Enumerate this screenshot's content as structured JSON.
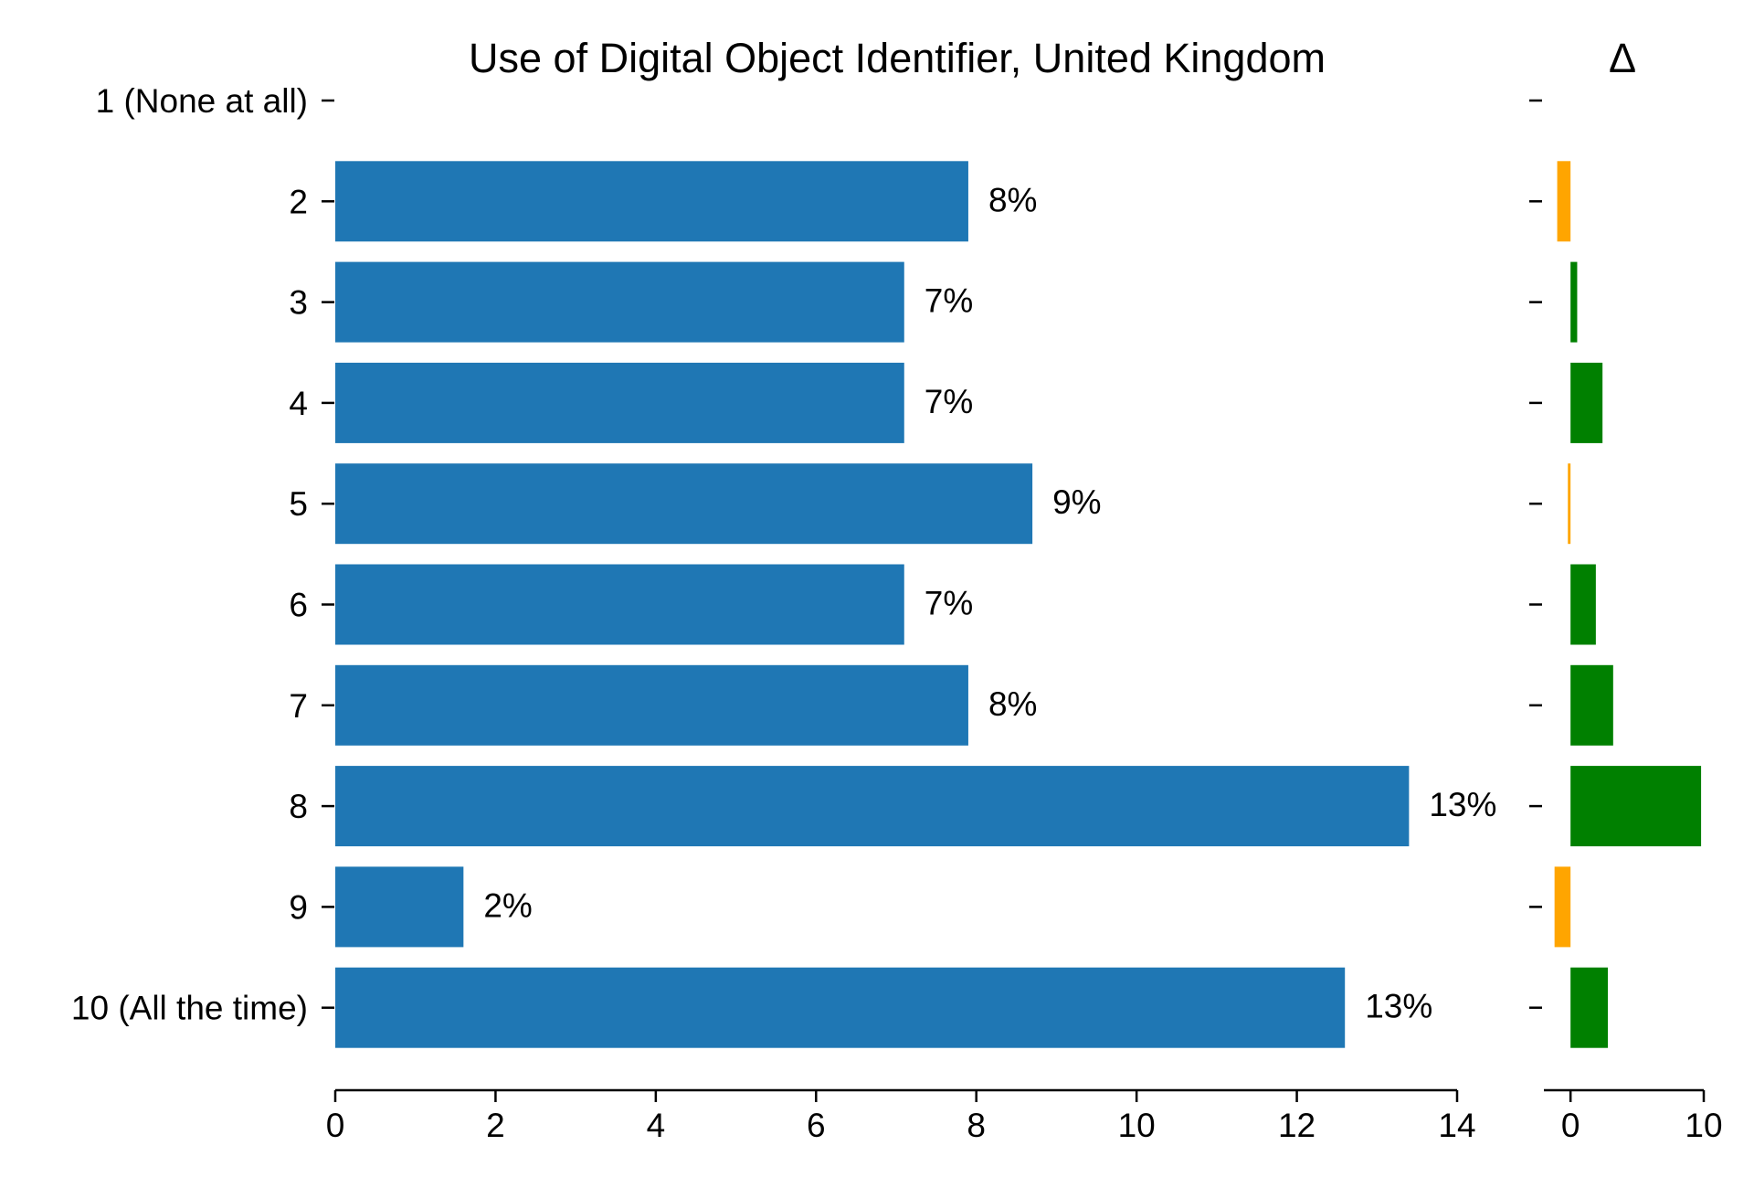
{
  "chart_data": [
    {
      "type": "bar",
      "orientation": "horizontal",
      "title": "Use of Digital Object Identifier, United Kingdom",
      "categories": [
        "1 (None at all)",
        "2",
        "3",
        "4",
        "5",
        "6",
        "7",
        "8",
        "9",
        "10 (All the time)"
      ],
      "values": [
        0,
        7.9,
        7.1,
        7.1,
        8.7,
        7.1,
        7.9,
        13.4,
        1.6,
        12.6
      ],
      "data_labels": [
        "",
        "8%",
        "7%",
        "7%",
        "9%",
        "7%",
        "8%",
        "13%",
        "2%",
        "13%"
      ],
      "xlim": [
        0,
        14
      ],
      "xticks": [
        0,
        2,
        4,
        6,
        8,
        10,
        12,
        14
      ],
      "xlabel": "",
      "ylabel": "",
      "bar_color": "#1f77b4",
      "grid": false
    },
    {
      "type": "bar",
      "orientation": "horizontal",
      "title": "Δ",
      "categories": [
        "1 (None at all)",
        "2",
        "3",
        "4",
        "5",
        "6",
        "7",
        "8",
        "9",
        "10 (All the time)"
      ],
      "values": [
        0,
        -1.0,
        0.5,
        2.4,
        -0.2,
        1.9,
        3.2,
        9.8,
        -1.2,
        2.8
      ],
      "xlim": [
        -2,
        10
      ],
      "xticks": [
        0,
        10
      ],
      "xlabel": "",
      "ylabel": "",
      "positive_color": "#008000",
      "negative_color": "#ffa500",
      "grid": false
    }
  ]
}
